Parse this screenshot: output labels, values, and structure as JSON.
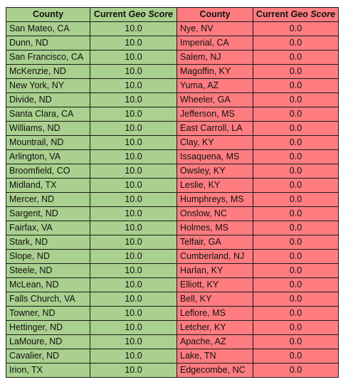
{
  "header": {
    "left_county": "County",
    "left_score_prefix": "Current ",
    "left_score_italic": "Geo Score",
    "right_county": "County",
    "right_score_prefix": "Current ",
    "right_score_italic": "Geo Score"
  },
  "colors": {
    "top_fill": "#a9d08e",
    "bottom_fill": "#ff7c80",
    "border": "#1a1a1a"
  },
  "rows": [
    {
      "left_county": "San Mateo, CA",
      "left_score": "10.0",
      "right_county": "Nye, NV",
      "right_score": "0.0"
    },
    {
      "left_county": "Dunn, ND",
      "left_score": "10.0",
      "right_county": "Imperial, CA",
      "right_score": "0.0"
    },
    {
      "left_county": "San Francisco, CA",
      "left_score": "10.0",
      "right_county": "Salem, NJ",
      "right_score": "0.0"
    },
    {
      "left_county": "McKenzie, ND",
      "left_score": "10.0",
      "right_county": "Magoffin, KY",
      "right_score": "0.0"
    },
    {
      "left_county": "New York, NY",
      "left_score": "10.0",
      "right_county": "Yuma, AZ",
      "right_score": "0.0"
    },
    {
      "left_county": "Divide, ND",
      "left_score": "10.0",
      "right_county": "Wheeler, GA",
      "right_score": "0.0"
    },
    {
      "left_county": "Santa Clara, CA",
      "left_score": "10.0",
      "right_county": "Jefferson, MS",
      "right_score": "0.0"
    },
    {
      "left_county": "Williams, ND",
      "left_score": "10.0",
      "right_county": "East Carroll, LA",
      "right_score": "0.0"
    },
    {
      "left_county": "Mountrail, ND",
      "left_score": "10.0",
      "right_county": "Clay, KY",
      "right_score": "0.0"
    },
    {
      "left_county": "Arlington, VA",
      "left_score": "10.0",
      "right_county": "Issaquena, MS",
      "right_score": "0.0"
    },
    {
      "left_county": "Broomfield, CO",
      "left_score": "10.0",
      "right_county": "Owsley, KY",
      "right_score": "0.0"
    },
    {
      "left_county": "Midland, TX",
      "left_score": "10.0",
      "right_county": "Leslie, KY",
      "right_score": "0.0"
    },
    {
      "left_county": "Mercer, ND",
      "left_score": "10.0",
      "right_county": "Humphreys, MS",
      "right_score": "0.0"
    },
    {
      "left_county": "Sargent, ND",
      "left_score": "10.0",
      "right_county": "Onslow, NC",
      "right_score": "0.0"
    },
    {
      "left_county": "Fairfax, VA",
      "left_score": "10.0",
      "right_county": "Holmes, MS",
      "right_score": "0.0"
    },
    {
      "left_county": "Stark, ND",
      "left_score": "10.0",
      "right_county": "Telfair, GA",
      "right_score": "0.0"
    },
    {
      "left_county": "Slope, ND",
      "left_score": "10.0",
      "right_county": "Cumberland, NJ",
      "right_score": "0.0"
    },
    {
      "left_county": "Steele, ND",
      "left_score": "10.0",
      "right_county": "Harlan, KY",
      "right_score": "0.0"
    },
    {
      "left_county": "McLean, ND",
      "left_score": "10.0",
      "right_county": "Elliott, KY",
      "right_score": "0.0"
    },
    {
      "left_county": "Falls Church, VA",
      "left_score": "10.0",
      "right_county": "Bell, KY",
      "right_score": "0.0"
    },
    {
      "left_county": "Towner, ND",
      "left_score": "10.0",
      "right_county": "Leflore, MS",
      "right_score": "0.0"
    },
    {
      "left_county": "Hettinger, ND",
      "left_score": "10.0",
      "right_county": "Letcher, KY",
      "right_score": "0.0"
    },
    {
      "left_county": "LaMoure, ND",
      "left_score": "10.0",
      "right_county": "Apache, AZ",
      "right_score": "0.0"
    },
    {
      "left_county": "Cavalier, ND",
      "left_score": "10.0",
      "right_county": "Lake, TN",
      "right_score": "0.0"
    },
    {
      "left_county": "Irion, TX",
      "left_score": "10.0",
      "right_county": "Edgecombe, NC",
      "right_score": "0.0"
    }
  ]
}
